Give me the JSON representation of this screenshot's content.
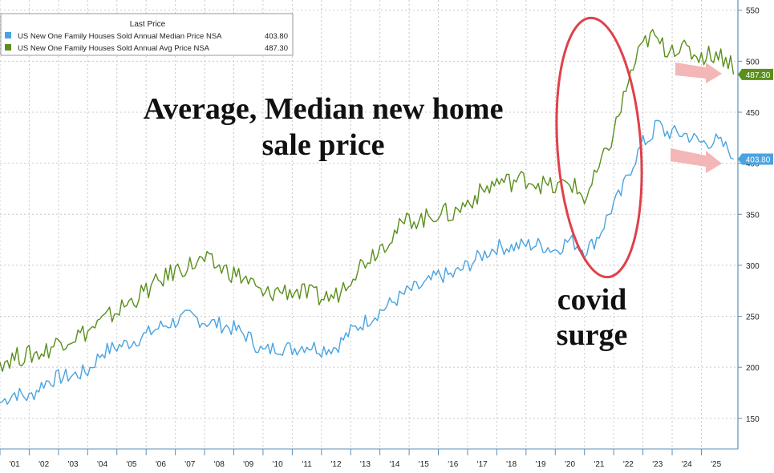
{
  "legend": {
    "header": "Last Price",
    "items": [
      {
        "label": "US New One Family Houses Sold Annual Median Price NSA",
        "value": "403.80",
        "color": "#4aa3df"
      },
      {
        "label": "US New One Family Houses Sold Annual Avg Price NSA",
        "value": "487.30",
        "color": "#5a8f1c"
      }
    ]
  },
  "annotations": {
    "title_line1": "Average, Median new home",
    "title_line2": "sale price",
    "covid_line1": "covid",
    "covid_line2": "surge"
  },
  "colors": {
    "median": "#4aa3df",
    "average": "#5a8f1c",
    "ellipse": "#e0414b",
    "arrow": "#f2aaaa",
    "grid": "#c8c8c8",
    "axis": "#5b8fb9"
  },
  "chart_data": {
    "type": "line",
    "x_tick_labels": [
      "'01",
      "'02",
      "'03",
      "'04",
      "'05",
      "'06",
      "'07",
      "'08",
      "'09",
      "'10",
      "'11",
      "'12",
      "'13",
      "'14",
      "'15",
      "'16",
      "'17",
      "'18",
      "'19",
      "'20",
      "'21",
      "'22",
      "'23",
      "'24",
      "'25"
    ],
    "y_ticks": [
      150,
      200,
      250,
      300,
      350,
      400,
      450,
      500,
      550
    ],
    "ylim": [
      120,
      560
    ],
    "xlim": [
      2000.0,
      2025.25
    ],
    "grid": true,
    "legend_position": "top-left",
    "series": [
      {
        "name": "US New One Family Houses Sold Annual Median Price NSA",
        "last_value": "403.80",
        "x": [
          2000.0,
          2000.5,
          2001.0,
          2001.5,
          2002.0,
          2002.5,
          2003.0,
          2003.5,
          2004.0,
          2004.5,
          2005.0,
          2005.5,
          2006.0,
          2006.5,
          2007.0,
          2007.5,
          2008.0,
          2008.5,
          2009.0,
          2009.5,
          2010.0,
          2010.5,
          2011.0,
          2011.5,
          2012.0,
          2012.5,
          2013.0,
          2013.5,
          2014.0,
          2014.5,
          2015.0,
          2015.5,
          2016.0,
          2016.5,
          2017.0,
          2017.5,
          2018.0,
          2018.5,
          2019.0,
          2019.5,
          2020.0,
          2020.25,
          2020.5,
          2020.75,
          2021.0,
          2021.25,
          2021.5,
          2021.75,
          2022.0,
          2022.25,
          2022.5,
          2022.75,
          2023.0,
          2023.5,
          2024.0,
          2024.5,
          2025.0,
          2025.1
        ],
        "values": [
          165,
          175,
          170,
          185,
          190,
          192,
          196,
          215,
          220,
          225,
          232,
          240,
          245,
          250,
          245,
          242,
          238,
          230,
          215,
          220,
          218,
          222,
          218,
          220,
          235,
          245,
          255,
          265,
          275,
          280,
          290,
          290,
          300,
          310,
          318,
          318,
          320,
          320,
          315,
          325,
          315,
          320,
          330,
          345,
          360,
          370,
          390,
          405,
          420,
          425,
          440,
          430,
          430,
          428,
          420,
          422,
          412,
          404
        ]
      },
      {
        "name": "US New One Family Houses Sold Annual Avg Price NSA",
        "last_value": "487.30",
        "x": [
          2000.0,
          2000.5,
          2001.0,
          2001.5,
          2002.0,
          2002.5,
          2003.0,
          2003.5,
          2004.0,
          2004.5,
          2005.0,
          2005.5,
          2006.0,
          2006.5,
          2007.0,
          2007.5,
          2008.0,
          2008.5,
          2009.0,
          2009.5,
          2010.0,
          2010.5,
          2011.0,
          2011.5,
          2012.0,
          2012.5,
          2013.0,
          2013.5,
          2014.0,
          2014.5,
          2015.0,
          2015.5,
          2016.0,
          2016.5,
          2017.0,
          2017.5,
          2018.0,
          2018.5,
          2019.0,
          2019.5,
          2020.0,
          2020.25,
          2020.5,
          2020.75,
          2021.0,
          2021.25,
          2021.5,
          2021.75,
          2022.0,
          2022.25,
          2022.5,
          2022.75,
          2023.0,
          2023.5,
          2024.0,
          2024.5,
          2025.0,
          2025.1
        ],
        "values": [
          205,
          210,
          212,
          215,
          225,
          230,
          235,
          245,
          255,
          265,
          275,
          285,
          295,
          300,
          305,
          298,
          292,
          285,
          270,
          275,
          275,
          272,
          268,
          270,
          290,
          305,
          318,
          332,
          345,
          345,
          352,
          350,
          362,
          372,
          382,
          382,
          385,
          380,
          375,
          382,
          365,
          378,
          395,
          410,
          430,
          455,
          480,
          500,
          515,
          525,
          520,
          512,
          515,
          510,
          505,
          508,
          500,
          487
        ]
      }
    ]
  }
}
